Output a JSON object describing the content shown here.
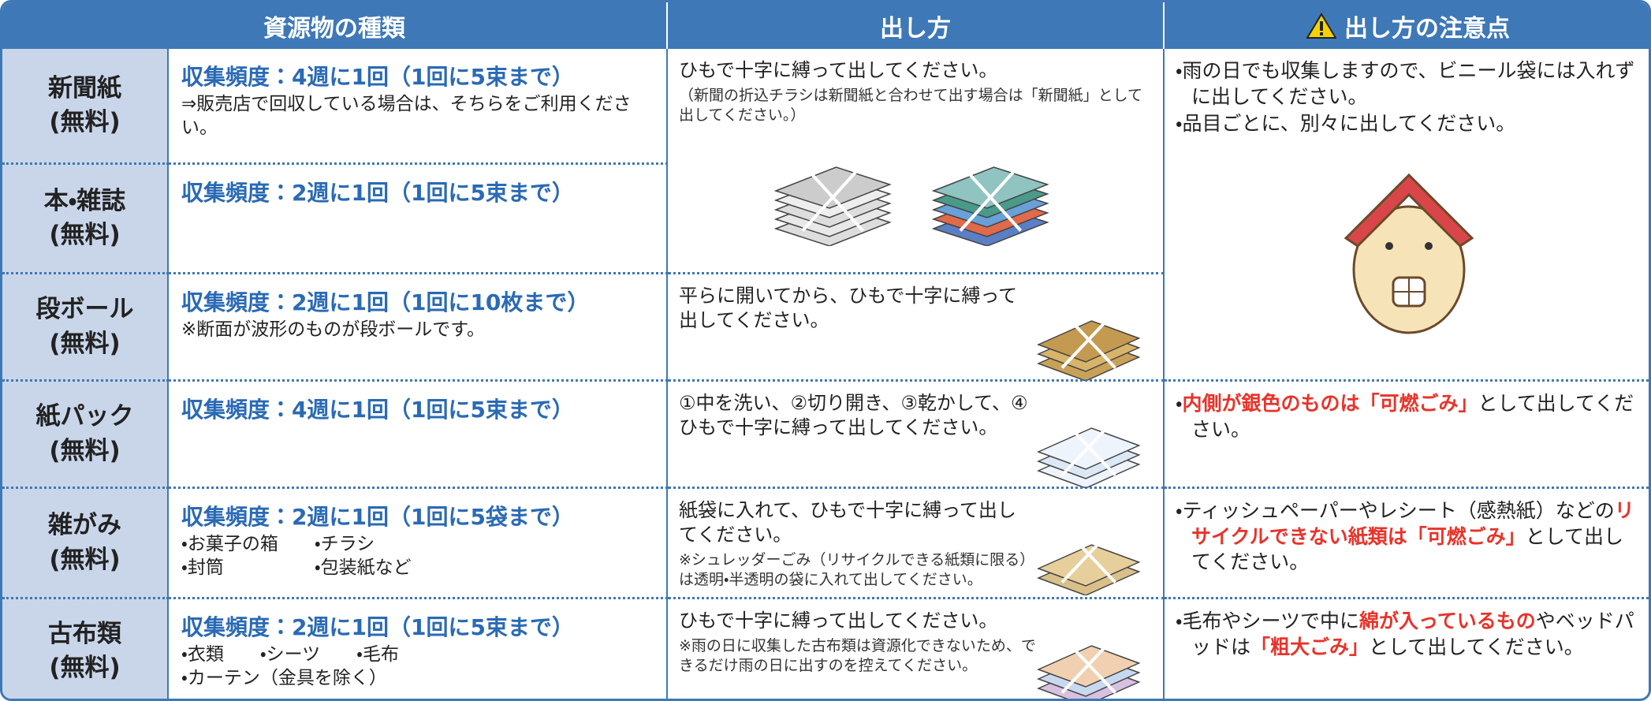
{
  "header": {
    "columns": [
      "資源物の種類",
      "出し方",
      "出し方の注意点"
    ]
  },
  "items": [
    {
      "name": "新聞紙",
      "fee": "(無料)",
      "frequency": "収集頻度：4週に1回（1回に5束まで）",
      "notes": [
        "⇒販売店で回収している場合は、そちらをご利用ください。"
      ]
    },
    {
      "name": "本・雑誌",
      "fee": "(無料)",
      "frequency": "収集頻度：2週に1回（1回に5束まで）",
      "notes": []
    },
    {
      "name": "段ボール",
      "fee": "(無料)",
      "frequency": "収集頻度：2週に1回（1回に10枚まで）",
      "notes": [
        "※断面が波形のものが段ボールです。"
      ]
    },
    {
      "name": "紙パック",
      "fee": "(無料)",
      "frequency": "収集頻度：4週に1回（1回に5束まで）",
      "notes": []
    },
    {
      "name": "雑がみ",
      "fee": "(無料)",
      "frequency": "収集頻度：2週に1回（1回に5袋まで）",
      "notes": [
        "・お菓子の箱　　・チラシ",
        "・封筒　　　　　・包装紙など"
      ]
    },
    {
      "name": "古布類",
      "fee": "(無料)",
      "frequency": "収集頻度：2週に1回（1回に5束まで）",
      "notes": [
        "・衣類　　・シーツ　　・毛布",
        "・カーテン（金具を除く）"
      ]
    }
  ],
  "methods": [
    {
      "text": "ひもで十字に縛って出してください。",
      "note": "（新聞の折込チラシは新聞紙と合わせて出す場合は「新聞紙」として出してください。）"
    },
    {
      "text": "平らに開いてから、ひもで十字に縛って出してください。"
    },
    {
      "text": "①中を洗い、②切り開き、③乾かして、④ひもで十字に縛って出してください。"
    },
    {
      "text": "紙袋に入れて、ひもで十字に縛って出してください。",
      "note": "※シュレッダーごみ（リサイクルできる紙類に限る）は透明・半透明の袋に入れて出してください。"
    },
    {
      "text": "ひもで十字に縛って出してください。",
      "note": "※雨の日に収集した古布類は資源化できないため、できるだけ雨の日に出すのを控えてください。"
    }
  ],
  "cautions": [
    [
      [
        {
          "text": "・雨の日でも収集しますので、ビニール袋には入れずに出してください。"
        }
      ],
      [
        {
          "text": "・品目ごとに、別々に出してください。"
        }
      ]
    ],
    [
      [
        {
          "text": "・"
        },
        {
          "text": "内側が銀色のものは「可燃ごみ」",
          "color": "#e8332a"
        },
        {
          "text": "として出してください。"
        }
      ]
    ],
    [
      [
        {
          "text": "・ティッシュペーパーやレシート（感熱紙）などの"
        },
        {
          "text": "リサイクルできない紙類は「可燃ごみ」",
          "color": "#e8332a"
        },
        {
          "text": "として出してください。"
        }
      ]
    ],
    [
      [
        {
          "text": "・毛布やシーツで中に"
        },
        {
          "text": "綿が入っているもの",
          "color": "#e8332a"
        },
        {
          "text": "やベッドパッドは"
        },
        {
          "text": "「粗大ごみ」",
          "color": "#e8332a"
        },
        {
          "text": "として出してください。"
        }
      ]
    ]
  ]
}
